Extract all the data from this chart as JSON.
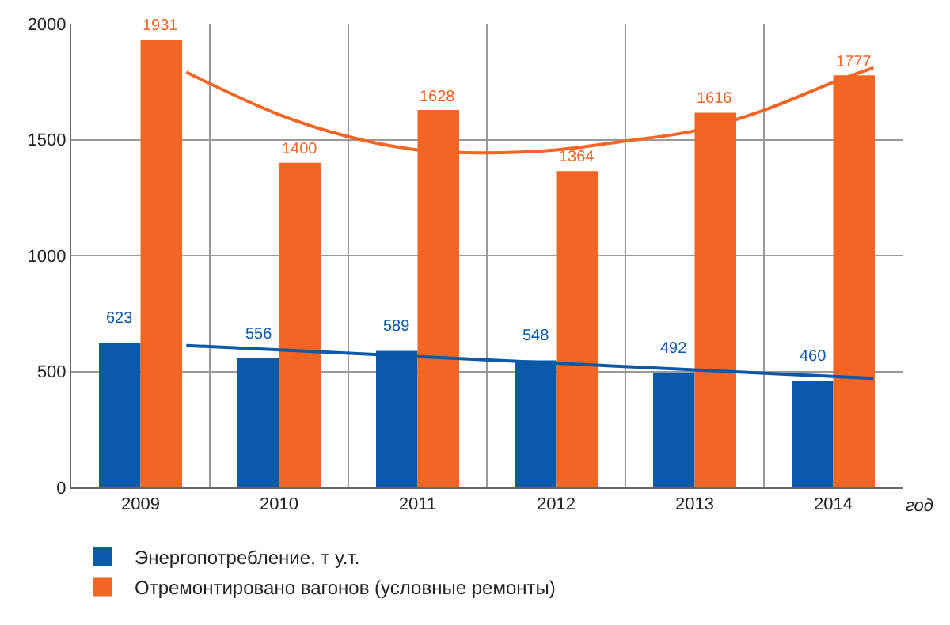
{
  "chart_data": {
    "type": "bar",
    "xlabel": "год",
    "x": [
      2009,
      2010,
      2011,
      2012,
      2013,
      2014
    ],
    "series": [
      {
        "name": "Энергопотребление, т у.т.",
        "color": "#0b59a8",
        "values": [
          623,
          556,
          589,
          548,
          492,
          460
        ],
        "value_labels": [
          "623",
          "556",
          "589",
          "548",
          "492",
          "460"
        ]
      },
      {
        "name": "Отремонтировано вагонов (условные ремонты)",
        "color": "#f26522",
        "values": [
          1931,
          1400,
          1628,
          1364,
          1616,
          1777
        ],
        "value_labels": [
          "1931",
          "1400",
          "1628",
          "1364",
          "1616",
          "1777"
        ]
      },
      {
        "type": "line",
        "color": "#0b59a8",
        "x": [
          2009.33,
          2014.29
        ],
        "values": [
          612,
          470
        ]
      },
      {
        "type": "line",
        "color": "#f26522",
        "x": [
          2009.33,
          2010,
          2010.5,
          2011,
          2011.5,
          2012,
          2012.5,
          2013,
          2013.5,
          2014,
          2014.29
        ],
        "values": [
          1791,
          1608,
          1513,
          1456,
          1443,
          1456,
          1494,
          1538,
          1627,
          1747,
          1810
        ]
      }
    ],
    "xlim": [
      2008.5,
      2014.5
    ],
    "xticks": [
      2009,
      2010,
      2011,
      2012,
      2013,
      2014,
      {
        "value": 2009.5,
        "label": null
      },
      {
        "value": 2010.5,
        "label": null
      },
      {
        "value": 2011.5,
        "label": null
      },
      {
        "value": 2012.5,
        "label": null
      },
      {
        "value": 2013.5,
        "label": null
      }
    ],
    "ylim": [
      0,
      2000
    ],
    "yticks": [
      0,
      500,
      1000,
      1500,
      2000
    ],
    "grid": true,
    "legend": "bottom left"
  }
}
